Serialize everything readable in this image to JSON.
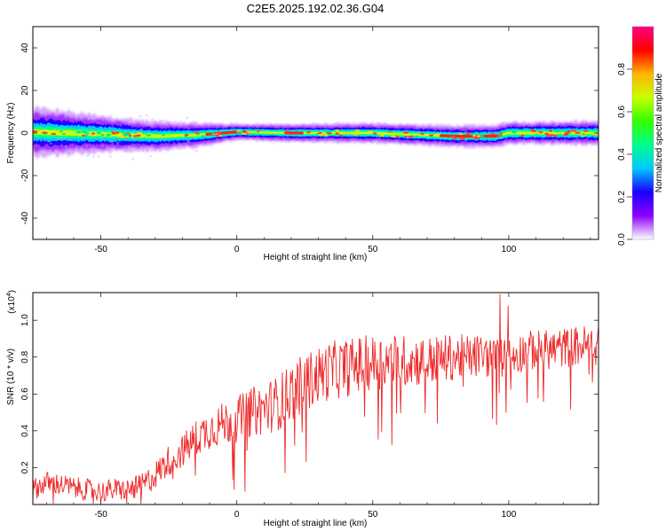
{
  "title": "C2E5.2025.192.02.36.G04",
  "chart_data": [
    {
      "type": "heatmap",
      "xlabel": "Height of straight line (km)",
      "ylabel": "Frequency (Hz)",
      "xlim": [
        -75,
        133
      ],
      "ylim": [
        -50,
        50
      ],
      "xticks": [
        -50,
        0,
        50,
        100
      ],
      "yticks": [
        -40,
        -20,
        0,
        20,
        40
      ],
      "colorbar": {
        "label": "Normalized spectral amplitude",
        "range": [
          0,
          1
        ],
        "ticks": [
          "0.0",
          "0.2",
          "0.4",
          "0.6",
          "0.8"
        ],
        "colormap": [
          "#ffffff",
          "#8c00ff",
          "#1a00ff",
          "#00c8ff",
          "#00ff8c",
          "#32ff00",
          "#c8ff00",
          "#ffb400",
          "#ff0000",
          "#ff0080"
        ]
      },
      "band": {
        "center_hz": [
          [
            -75,
            0.5
          ],
          [
            -50,
            -0.5
          ],
          [
            -30,
            -1.5
          ],
          [
            -15,
            -1
          ],
          [
            0,
            0.5
          ],
          [
            20,
            0
          ],
          [
            50,
            0
          ],
          [
            80,
            -1.5
          ],
          [
            95,
            -1.5
          ],
          [
            100,
            0
          ],
          [
            133,
            0
          ]
        ],
        "halfwidth_hz": [
          [
            -75,
            6
          ],
          [
            -40,
            4
          ],
          [
            -15,
            3
          ],
          [
            0,
            2
          ],
          [
            60,
            2.5
          ],
          [
            133,
            3
          ]
        ],
        "strong_segments_km": [
          [
            -11,
            3
          ],
          [
            18,
            24
          ],
          [
            75,
            97
          ]
        ]
      }
    },
    {
      "type": "line",
      "xlabel": "Height of straight line (km)",
      "ylabel": "SNR (10 * v/v)",
      "yscale_label": "(x10",
      "yscale_exp": "4",
      "xlim": [
        -75,
        133
      ],
      "ylim": [
        0,
        1.15
      ],
      "xticks": [
        -50,
        0,
        50,
        100
      ],
      "yticks": [
        "0.2",
        "0.4",
        "0.6",
        "0.8",
        "1.0"
      ],
      "color": "#ee2b2b",
      "series": [
        {
          "x": [
            -75,
            -70,
            -65,
            -60,
            -55,
            -50,
            -45,
            -40,
            -35,
            -30,
            -25,
            -20,
            -15,
            -10,
            -5,
            0,
            5,
            10,
            15,
            20,
            25,
            30,
            35,
            40,
            45,
            50,
            55,
            60,
            65,
            70,
            75,
            80,
            85,
            90,
            95,
            100,
            105,
            110,
            115,
            120,
            125,
            130,
            133
          ],
          "y": [
            0.08,
            0.12,
            0.11,
            0.09,
            0.08,
            0.07,
            0.08,
            0.08,
            0.1,
            0.16,
            0.24,
            0.29,
            0.36,
            0.41,
            0.44,
            0.46,
            0.5,
            0.52,
            0.55,
            0.61,
            0.66,
            0.7,
            0.73,
            0.74,
            0.76,
            0.77,
            0.78,
            0.78,
            0.78,
            0.78,
            0.79,
            0.8,
            0.8,
            0.81,
            0.79,
            0.8,
            0.83,
            0.84,
            0.84,
            0.85,
            0.86,
            0.87,
            0.86
          ]
        }
      ]
    }
  ]
}
